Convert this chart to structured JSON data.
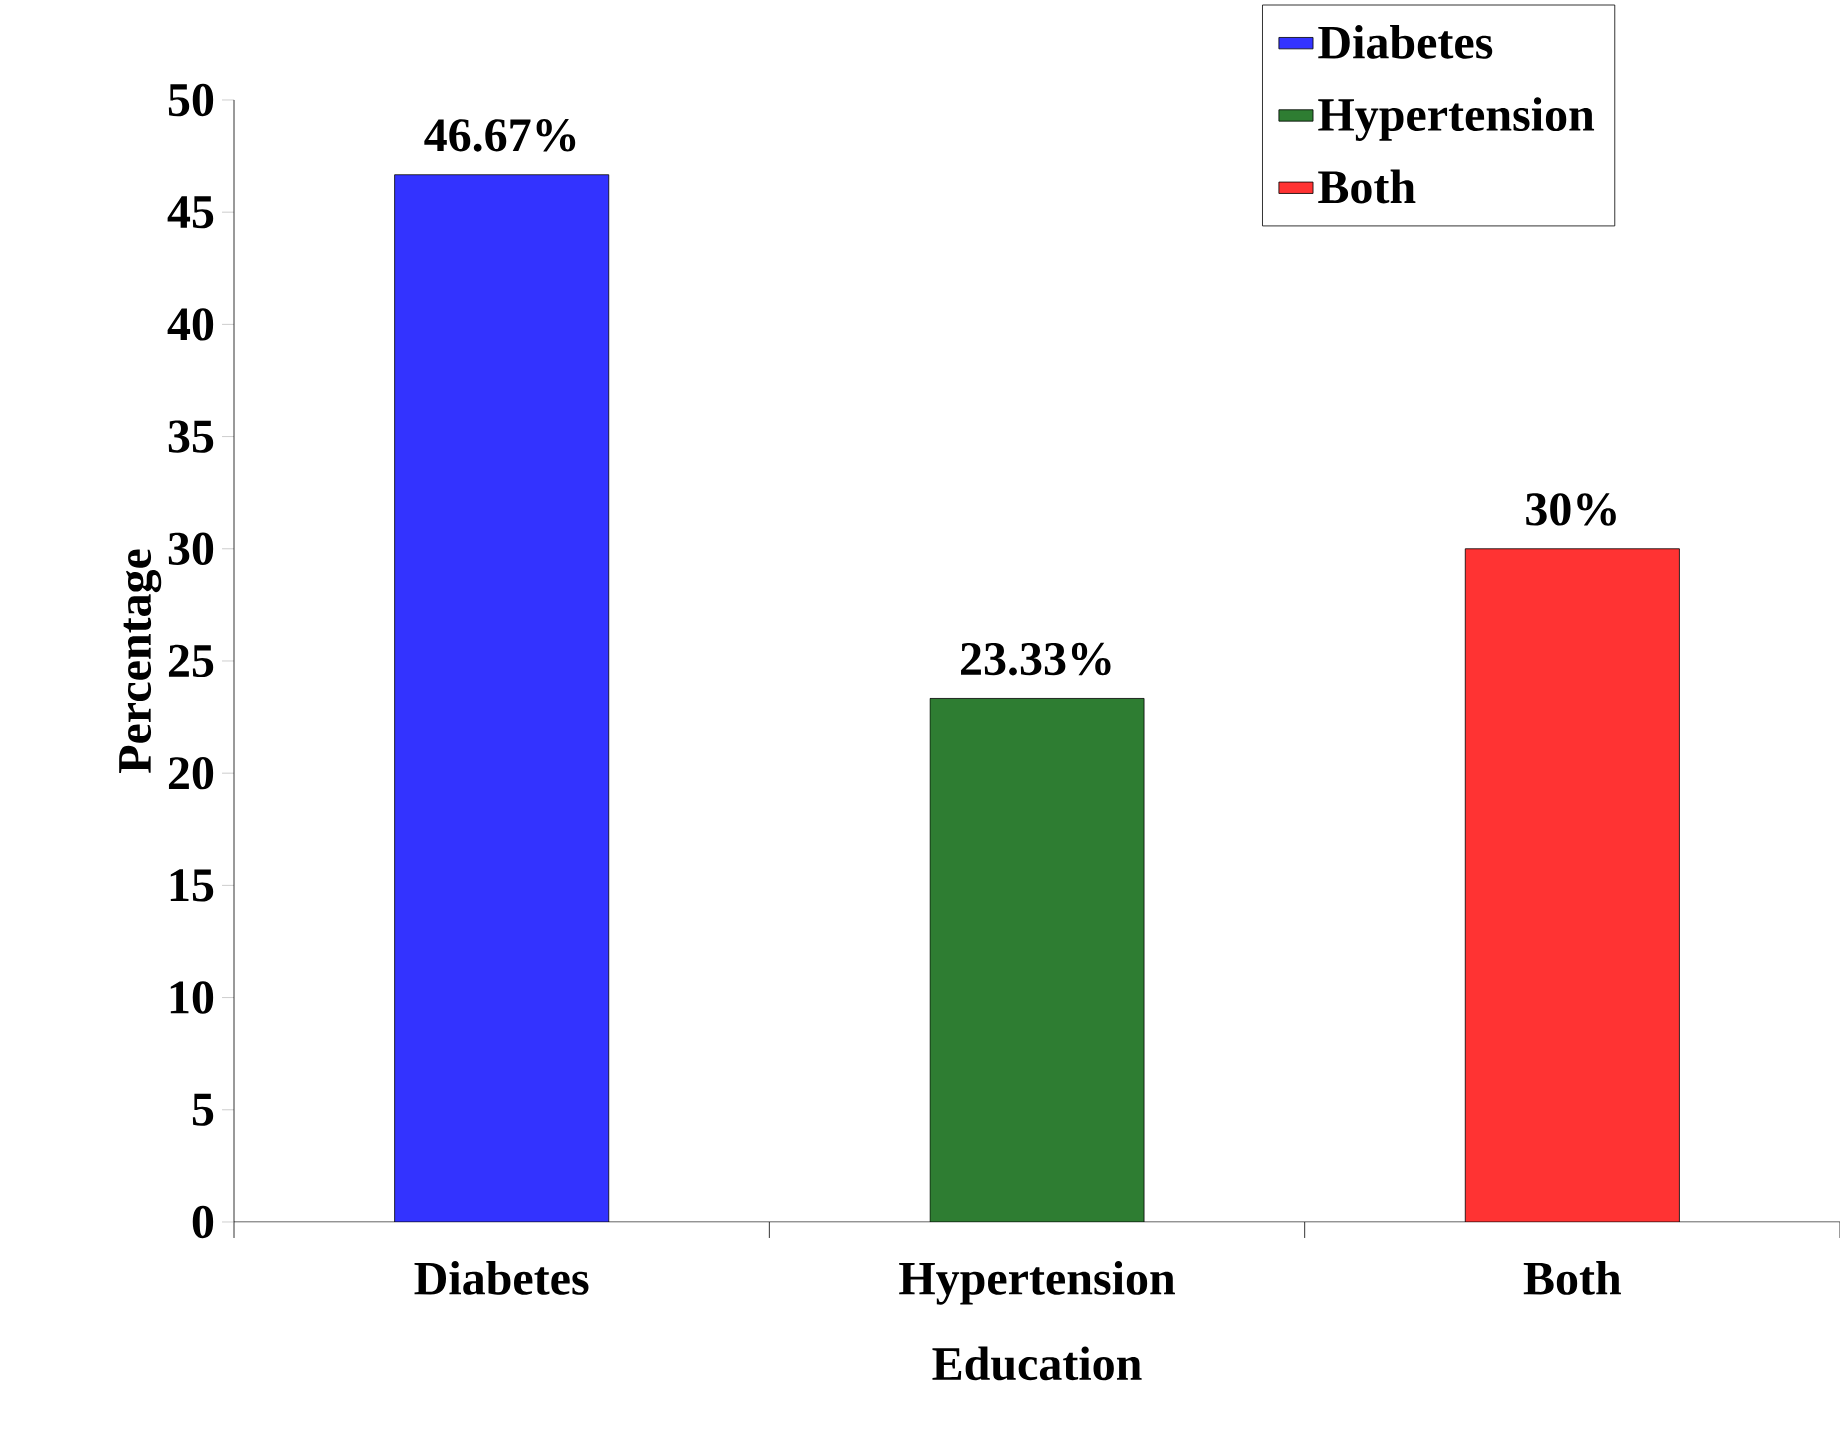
{
  "chart_data": {
    "type": "bar",
    "xlabel": "Education",
    "ylabel": "Percentage",
    "categories": [
      "Diabetes",
      "Hypertension",
      "Both"
    ],
    "series": [
      {
        "name": "Diabetes",
        "color": "#3333ff",
        "values": [
          46.67,
          null,
          null
        ],
        "value_labels": [
          "46.67%",
          null,
          null
        ]
      },
      {
        "name": "Hypertension",
        "color": "#2e7d32",
        "values": [
          null,
          23.33,
          null
        ],
        "value_labels": [
          null,
          "23.33%",
          null
        ]
      },
      {
        "name": "Both",
        "color": "#ff3333",
        "values": [
          null,
          null,
          30
        ],
        "value_labels": [
          null,
          null,
          "30%"
        ]
      }
    ],
    "ylim": [
      0,
      50
    ],
    "yticks": [
      0,
      5,
      10,
      15,
      20,
      25,
      30,
      35,
      40,
      45,
      50
    ],
    "legend": "top right"
  }
}
